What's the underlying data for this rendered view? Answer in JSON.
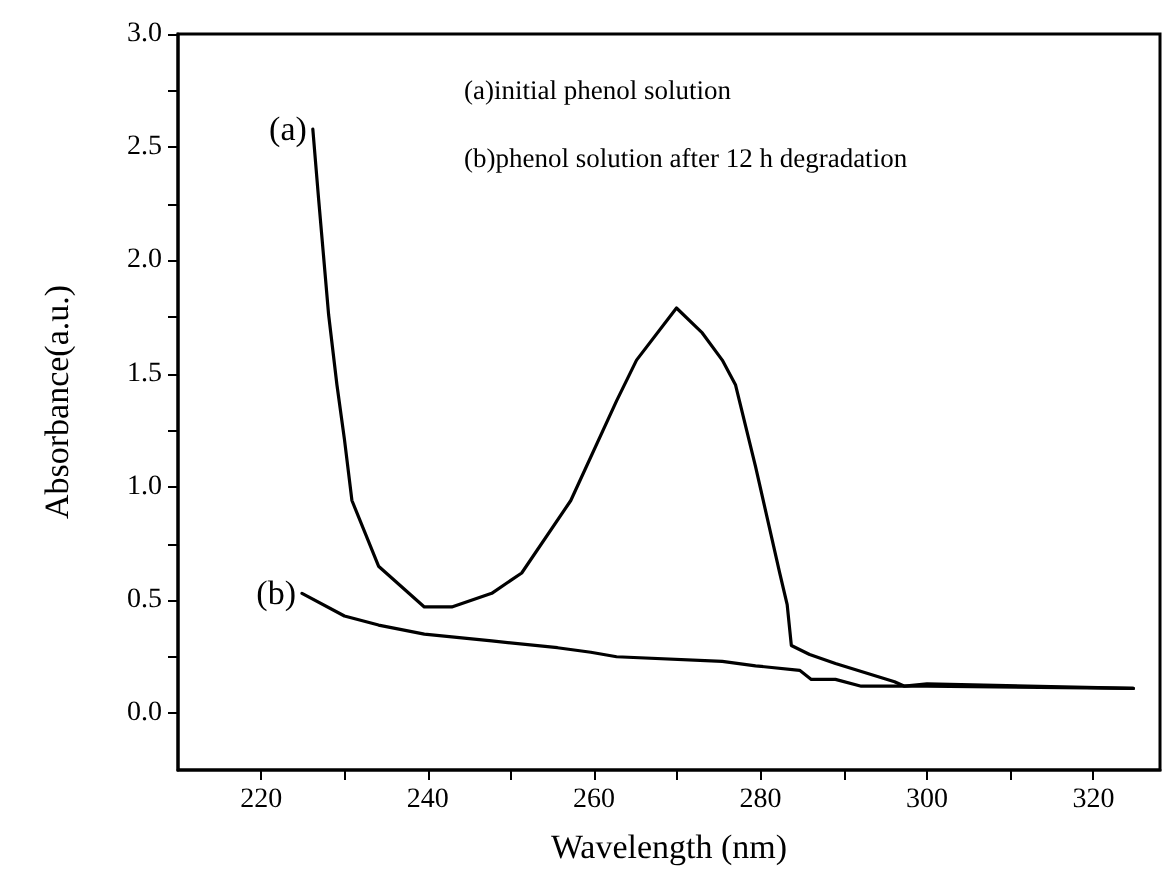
{
  "chart_data": {
    "type": "line",
    "xlabel": "Wavelength (nm)",
    "ylabel": "Absorbance(a.u.)",
    "xlim": [
      210,
      328
    ],
    "xticks": [
      220,
      {
        "value": 230,
        "label": null
      },
      240,
      {
        "value": 250,
        "label": null
      },
      260,
      {
        "value": 270,
        "label": null
      },
      280,
      {
        "value": 290,
        "label": null
      },
      300,
      {
        "value": 310,
        "label": null
      },
      320
    ],
    "ylim": [
      -0.25,
      3.0
    ],
    "yticks": [
      {
        "value": 0,
        "label": "0.0"
      },
      {
        "value": 0.25,
        "label": null
      },
      {
        "value": 0.5,
        "label": "0.5"
      },
      {
        "value": 0.75,
        "label": null
      },
      {
        "value": 1,
        "label": "1.0"
      },
      {
        "value": 1.25,
        "label": null
      },
      {
        "value": 1.5,
        "label": "1.5"
      },
      {
        "value": 1.75,
        "label": null
      },
      {
        "value": 2,
        "label": "2.0"
      },
      {
        "value": 2.25,
        "label": null
      },
      {
        "value": 2.5,
        "label": "2.5"
      },
      {
        "value": 2.75,
        "label": null
      },
      {
        "value": 3,
        "label": "3.0"
      }
    ],
    "marker": "none",
    "line_style": "solid",
    "series": [
      {
        "color": "#000000",
        "x": [
          226.2,
          226.9,
          228.1,
          229.1,
          230,
          230.9,
          234.1,
          239.6,
          242.9,
          247.7,
          251.3,
          257.2,
          262.7,
          265.1,
          269.9,
          273,
          275.4,
          277,
          278.2,
          279.4,
          282.3,
          283.2,
          283.7,
          285.9,
          289,
          296.1,
          297.3,
          300,
          324.8
        ],
        "values": [
          2.58,
          2.27,
          1.76,
          1.45,
          1.21,
          0.94,
          0.65,
          0.47,
          0.47,
          0.53,
          0.62,
          0.94,
          1.38,
          1.56,
          1.79,
          1.68,
          1.56,
          1.45,
          1.27,
          1.09,
          0.62,
          0.48,
          0.3,
          0.26,
          0.22,
          0.14,
          0.12,
          0.13,
          0.11
        ]
      },
      {
        "color": "#000000",
        "x": [
          224.9,
          230,
          234.1,
          239.6,
          247.7,
          255.6,
          259.6,
          262.7,
          275.4,
          279.4,
          284.7,
          286.1,
          289,
          292.1,
          300,
          324.8
        ],
        "values": [
          0.53,
          0.43,
          0.39,
          0.35,
          0.32,
          0.29,
          0.27,
          0.25,
          0.23,
          0.21,
          0.19,
          0.15,
          0.15,
          0.12,
          0.12,
          0.11
        ]
      }
    ],
    "annotations": [
      {
        "text": "(a)",
        "x": 226.2,
        "y": 2.58
      },
      {
        "text": "(b)",
        "x": 224.9,
        "y": 0.53
      },
      "(a)initial phenol solution",
      "(b)phenol solution after 12 h degradation"
    ]
  }
}
